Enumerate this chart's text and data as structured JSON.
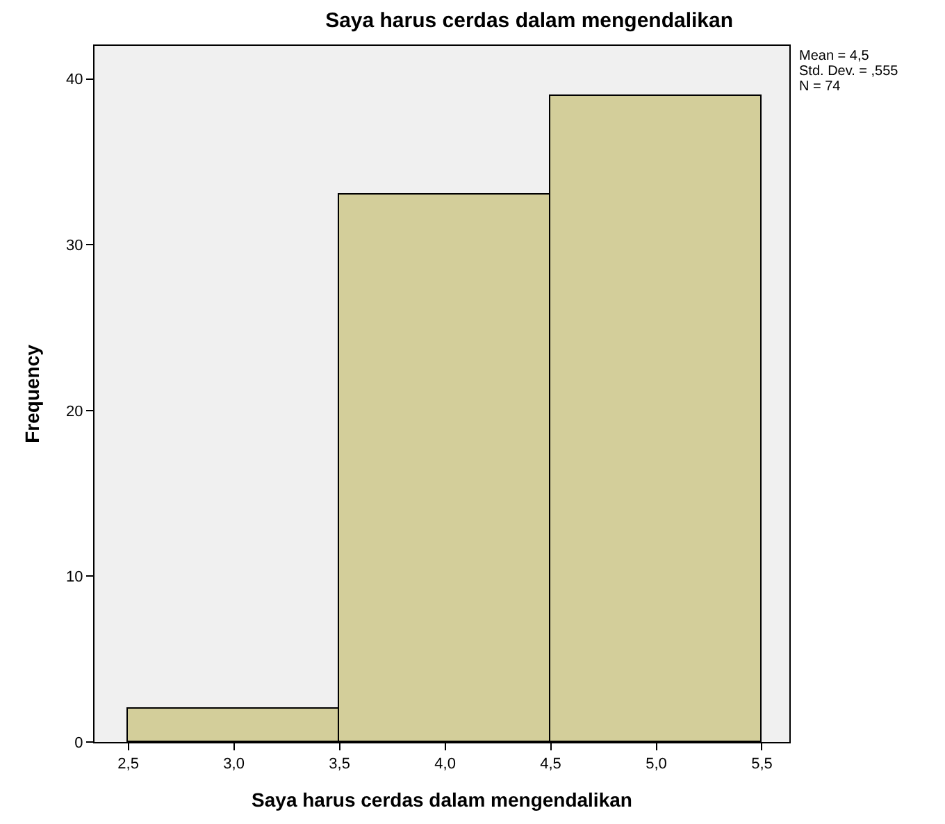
{
  "chart_data": {
    "type": "histogram",
    "title": "Saya harus cerdas dalam mengendalikan",
    "xlabel": "Saya harus cerdas dalam mengendalikan",
    "ylabel": "Frequency",
    "bins": [
      2.5,
      3.5,
      4.5,
      5.5
    ],
    "values": [
      2,
      33,
      39
    ],
    "color": "#d3ce9a",
    "xlim": [
      2.34,
      5.63
    ],
    "ylim": [
      0,
      42
    ],
    "xticks": [
      {
        "value": 2.5,
        "label": "2,5"
      },
      {
        "value": 3.0,
        "label": "3,0"
      },
      {
        "value": 3.5,
        "label": "3,5"
      },
      {
        "value": 4.0,
        "label": "4,0"
      },
      {
        "value": 4.5,
        "label": "4,5"
      },
      {
        "value": 5.0,
        "label": "5,0"
      },
      {
        "value": 5.5,
        "label": "5,5"
      }
    ],
    "yticks": [
      0,
      10,
      20,
      30,
      40
    ],
    "annotations": [
      "Mean = 4,5",
      "Std. Dev. = ,555",
      "N = 74"
    ]
  }
}
